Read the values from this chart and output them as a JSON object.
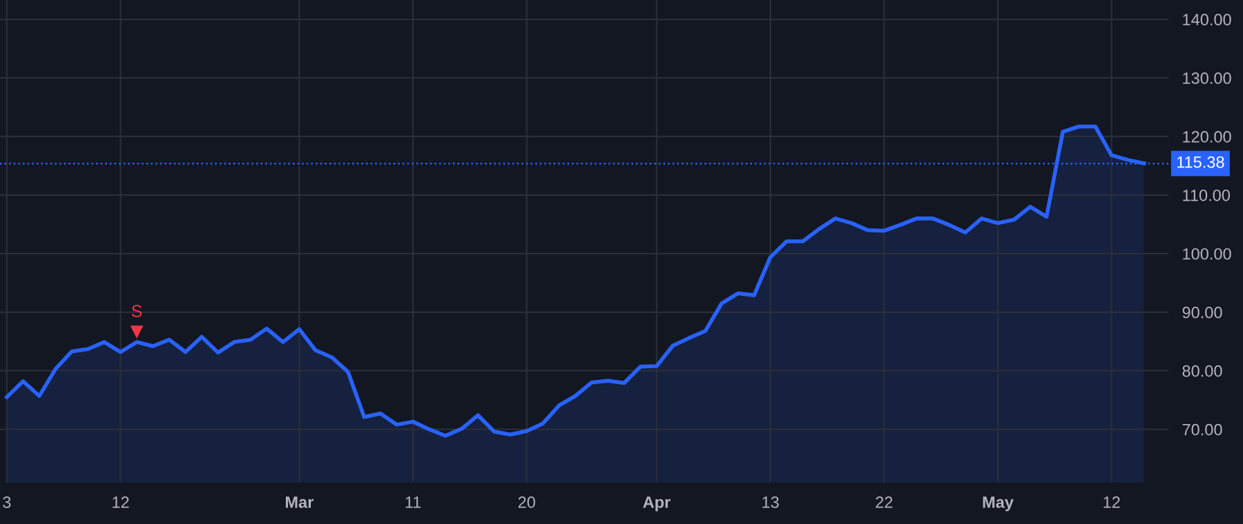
{
  "chart_data": {
    "type": "area",
    "categories": [
      "3",
      null,
      null,
      null,
      null,
      null,
      null,
      "12",
      null,
      null,
      null,
      null,
      null,
      null,
      null,
      null,
      null,
      null,
      "Mar",
      null,
      null,
      null,
      null,
      null,
      null,
      "11",
      null,
      null,
      null,
      null,
      null,
      null,
      "20",
      null,
      null,
      null,
      null,
      null,
      null,
      null,
      "Apr",
      null,
      null,
      null,
      null,
      null,
      null,
      "13",
      null,
      null,
      null,
      null,
      null,
      null,
      "22",
      null,
      null,
      null,
      null,
      null,
      null,
      "May",
      null,
      null,
      null,
      null,
      null,
      null,
      "12",
      null,
      null
    ],
    "series": [
      {
        "color": "#2962ff",
        "values": [
          75.5,
          78.2,
          75.7,
          80.3,
          83.3,
          83.7,
          84.9,
          83.2,
          84.9,
          84.2,
          85.3,
          83.2,
          85.8,
          83.1,
          84.9,
          85.3,
          87.2,
          84.9,
          87.1,
          83.5,
          82.3,
          79.8,
          72.1,
          72.7,
          70.8,
          71.3,
          70.0,
          68.9,
          70.1,
          72.4,
          69.6,
          69.1,
          69.7,
          71.0,
          74.1,
          75.7,
          78.0,
          78.3,
          77.9,
          80.7,
          80.8,
          84.3,
          85.6,
          86.8,
          91.5,
          93.2,
          92.9,
          99.4,
          102.1,
          102.1,
          104.2,
          106.0,
          105.2,
          104.0,
          103.9,
          104.9,
          106.0,
          106.0,
          104.9,
          103.6,
          106.0,
          105.2,
          105.8,
          108.0,
          106.3,
          120.8,
          121.7,
          121.7,
          116.8,
          116.0,
          115.4
        ]
      },
      {
        "type": "scatter",
        "name": "S",
        "color": "#f23645",
        "marker": "triangle",
        "values": [
          null,
          null,
          null,
          null,
          null,
          null,
          null,
          null,
          86.6,
          null,
          null,
          null,
          null,
          null,
          null,
          null,
          null,
          null,
          null,
          null,
          null,
          null,
          null,
          null,
          null,
          null,
          null,
          null,
          null,
          null,
          null,
          null,
          null,
          null,
          null,
          null,
          null,
          null,
          null,
          null,
          null,
          null,
          null,
          null,
          null,
          null,
          null,
          null,
          null,
          null,
          null,
          null,
          null,
          null,
          null,
          null,
          null,
          null,
          null,
          null,
          null,
          null,
          null,
          null,
          null,
          null,
          null,
          null,
          null,
          null,
          null
        ]
      }
    ],
    "ylim": [
      60.9,
      143.3
    ],
    "yticks": [
      {
        "value": 70,
        "label": "70.00"
      },
      {
        "value": 80,
        "label": "80.00"
      },
      {
        "value": 90,
        "label": "90.00"
      },
      {
        "value": 100,
        "label": "100.00"
      },
      {
        "value": 110,
        "label": "110.00"
      },
      {
        "value": 120,
        "label": "120.00"
      },
      {
        "value": 130,
        "label": "130.00"
      },
      {
        "value": 140,
        "label": "140.00"
      }
    ],
    "ref_lines": [
      {
        "axis": "y",
        "value": 115.38,
        "label": "115.38",
        "color": "#2962ff",
        "line_style": "dotted"
      }
    ],
    "grid": true,
    "legend": false
  }
}
